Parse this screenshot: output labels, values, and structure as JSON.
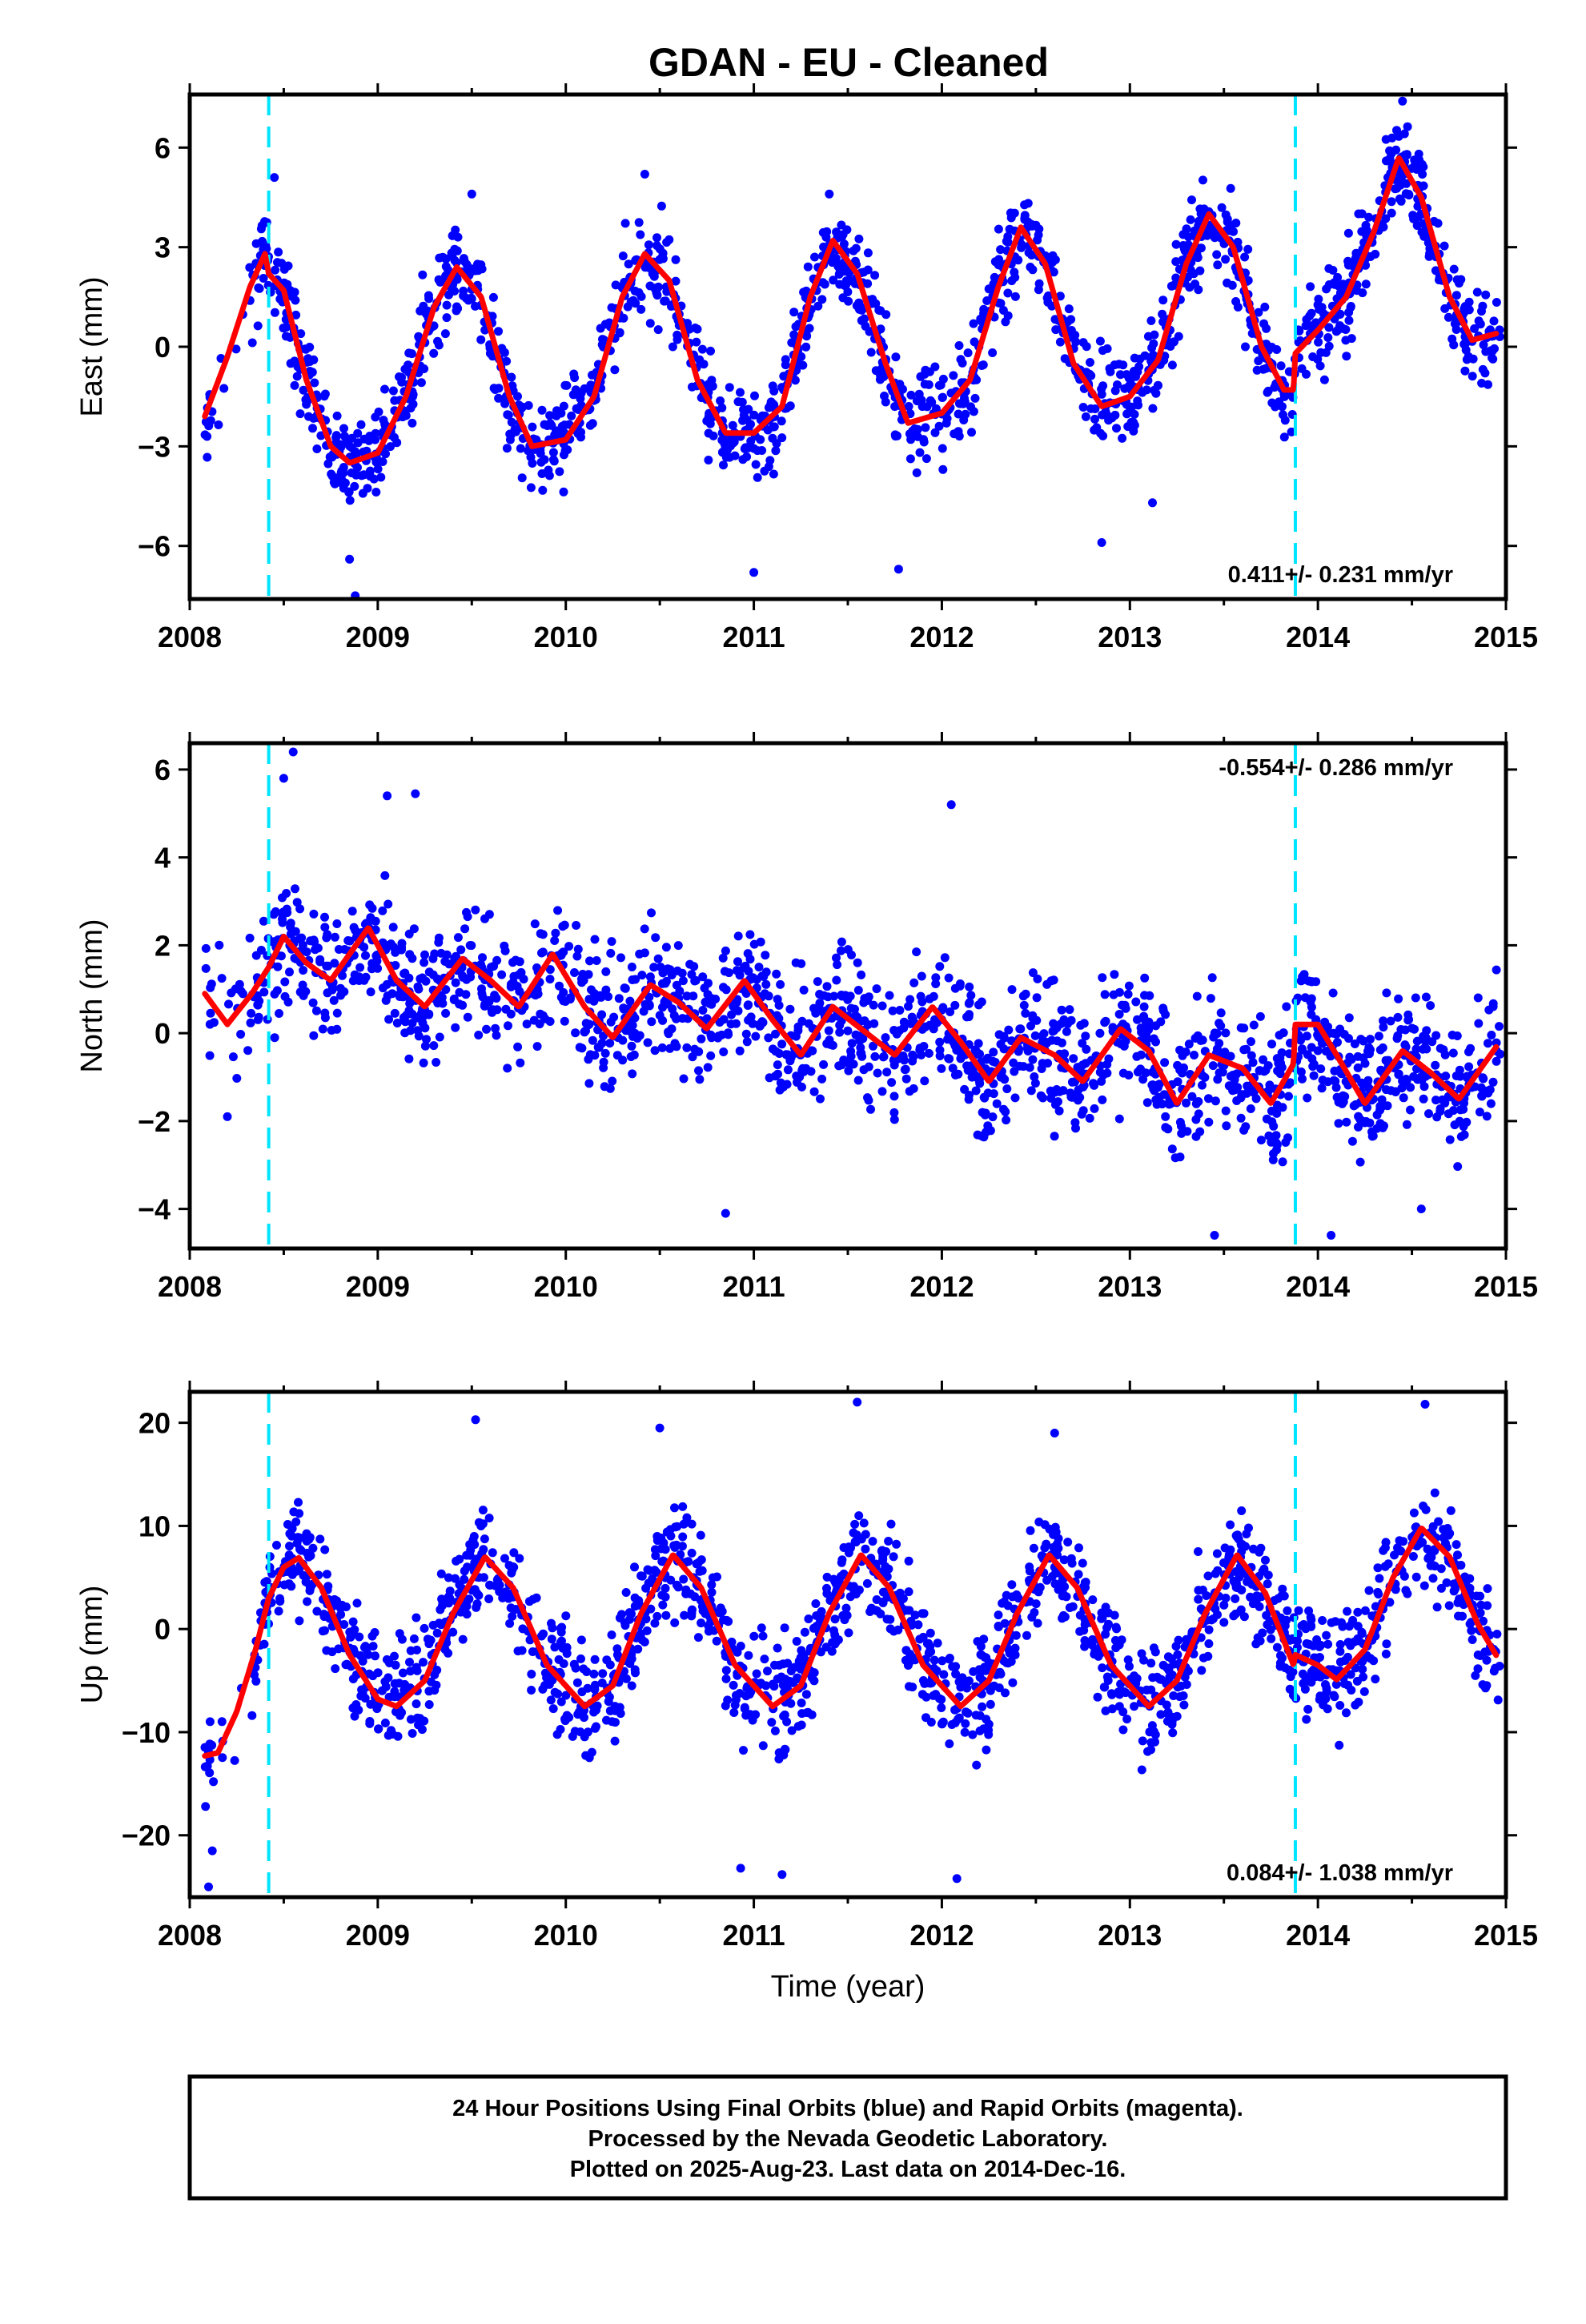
{
  "title": "GDAN  - EU - Cleaned",
  "footer": {
    "line1": "24 Hour Positions Using Final Orbits (blue) and Rapid Orbits (magenta).",
    "line2": "Processed by the Nevada Geodetic Laboratory.",
    "line3": "Plotted on 2025-Aug-23. Last data on 2014-Dec-16."
  },
  "colors": {
    "final_orbits": "#0000ff",
    "model": "#ff0000",
    "offsets": "#00e5ff",
    "frame": "#000000"
  },
  "chart_data": [
    {
      "type": "scatter",
      "name": "east",
      "ylabel": "East (mm)",
      "xlabel": "",
      "xlim": [
        2008.0,
        2015.0
      ],
      "ylim": [
        -7.6,
        7.6
      ],
      "xticks": [
        2008,
        2009,
        2010,
        2011,
        2012,
        2013,
        2014,
        2015
      ],
      "yticks": [
        6,
        3,
        0,
        -3,
        -6
      ],
      "ytick_labels": [
        "6",
        "3",
        "0",
        "−3",
        "−6"
      ],
      "rate_label": "0.411+/- 0.231 mm/yr",
      "rate_position": "bottom-right",
      "offsets": [
        2008.42,
        2013.88
      ],
      "model": {
        "x": [
          2008.08,
          2008.2,
          2008.32,
          2008.4,
          2008.42,
          2008.5,
          2008.62,
          2008.75,
          2008.85,
          2009.0,
          2009.15,
          2009.3,
          2009.42,
          2009.55,
          2009.7,
          2009.82,
          2010.0,
          2010.15,
          2010.3,
          2010.42,
          2010.55,
          2010.7,
          2010.85,
          2011.0,
          2011.15,
          2011.3,
          2011.42,
          2011.55,
          2011.7,
          2011.82,
          2012.0,
          2012.15,
          2012.3,
          2012.42,
          2012.55,
          2012.7,
          2012.85,
          2013.0,
          2013.15,
          2013.3,
          2013.42,
          2013.55,
          2013.7,
          2013.82,
          2013.87,
          2013.88,
          2014.0,
          2014.15,
          2014.3,
          2014.43,
          2014.55,
          2014.7,
          2014.82,
          2014.95
        ],
        "y": [
          -2.1,
          -0.3,
          1.8,
          2.8,
          2.2,
          1.7,
          -1.0,
          -3.0,
          -3.5,
          -3.2,
          -1.5,
          1.2,
          2.4,
          1.5,
          -1.5,
          -3.0,
          -2.8,
          -1.5,
          1.5,
          2.8,
          2.0,
          -1.0,
          -2.6,
          -2.6,
          -1.8,
          1.5,
          3.2,
          2.2,
          -0.5,
          -2.3,
          -2.0,
          -1.0,
          1.8,
          3.6,
          2.5,
          -0.5,
          -1.8,
          -1.5,
          -0.4,
          2.5,
          4.0,
          3.0,
          0.0,
          -1.3,
          -1.3,
          -0.2,
          0.5,
          1.5,
          3.5,
          5.7,
          4.5,
          1.5,
          0.2,
          0.4
        ]
      },
      "series": [
        {
          "name": "",
          "generator": {
            "seed": 11,
            "x_start": 2008.08,
            "x_end": 2014.97,
            "count": 1750,
            "spread": 0.95,
            "outliers": [
              [
                2008.88,
                -7.5
              ],
              [
                2008.85,
                -6.4
              ],
              [
                2011.0,
                -6.8
              ],
              [
                2011.77,
                -6.7
              ],
              [
                2012.85,
                -5.9
              ],
              [
                2013.12,
                -4.7
              ],
              [
                2014.45,
                7.4
              ],
              [
                2008.45,
                5.1
              ],
              [
                2009.5,
                4.6
              ],
              [
                2010.42,
                5.2
              ]
            ]
          }
        }
      ]
    },
    {
      "type": "scatter",
      "name": "north",
      "ylabel": "North (mm)",
      "xlabel": "",
      "xlim": [
        2008.0,
        2015.0
      ],
      "ylim": [
        -4.9,
        6.6
      ],
      "xticks": [
        2008,
        2009,
        2010,
        2011,
        2012,
        2013,
        2014,
        2015
      ],
      "yticks": [
        6,
        4,
        2,
        0,
        -2,
        -4
      ],
      "ytick_labels": [
        "6",
        "4",
        "2",
        "0",
        "−2",
        "−4"
      ],
      "rate_label": "-0.554+/- 0.286 mm/yr",
      "rate_position": "top-right",
      "offsets": [
        2008.42,
        2013.88
      ],
      "model": {
        "x": [
          2008.08,
          2008.2,
          2008.33,
          2008.42,
          2008.5,
          2008.62,
          2008.75,
          2008.95,
          2009.1,
          2009.25,
          2009.45,
          2009.6,
          2009.75,
          2009.93,
          2010.1,
          2010.25,
          2010.45,
          2010.6,
          2010.75,
          2010.95,
          2011.1,
          2011.25,
          2011.42,
          2011.6,
          2011.75,
          2011.95,
          2012.1,
          2012.25,
          2012.42,
          2012.6,
          2012.75,
          2012.95,
          2013.1,
          2013.25,
          2013.42,
          2013.6,
          2013.75,
          2013.87,
          2013.88,
          2014.0,
          2014.1,
          2014.25,
          2014.45,
          2014.6,
          2014.75,
          2014.95
        ],
        "y": [
          0.9,
          0.2,
          0.9,
          1.5,
          2.2,
          1.6,
          1.2,
          2.4,
          1.2,
          0.6,
          1.7,
          1.2,
          0.6,
          1.8,
          0.6,
          -0.1,
          1.1,
          0.7,
          0.1,
          1.2,
          0.3,
          -0.5,
          0.6,
          0.0,
          -0.5,
          0.6,
          -0.2,
          -1.1,
          -0.1,
          -0.5,
          -1.1,
          0.1,
          -0.4,
          -1.6,
          -0.5,
          -0.8,
          -1.6,
          -0.7,
          0.2,
          0.2,
          -0.5,
          -1.6,
          -0.4,
          -0.9,
          -1.5,
          -0.3
        ]
      },
      "series": [
        {
          "name": "",
          "generator": {
            "seed": 23,
            "x_start": 2008.08,
            "x_end": 2014.97,
            "count": 1750,
            "spread": 1.0,
            "outliers": [
              [
                2008.55,
                6.4
              ],
              [
                2008.5,
                5.8
              ],
              [
                2009.05,
                5.4
              ],
              [
                2009.2,
                5.45
              ],
              [
                2012.05,
                5.2
              ],
              [
                2013.45,
                -4.6
              ],
              [
                2014.07,
                -4.6
              ],
              [
                2010.85,
                -4.1
              ],
              [
                2014.55,
                -4.0
              ],
              [
                2008.2,
                -1.9
              ]
            ]
          }
        }
      ]
    },
    {
      "type": "scatter",
      "name": "up",
      "ylabel": "Up (mm)",
      "xlabel": "Time (year)",
      "xlim": [
        2008.0,
        2015.0
      ],
      "ylim": [
        -26.0,
        23.0
      ],
      "xticks": [
        2008,
        2009,
        2010,
        2011,
        2012,
        2013,
        2014,
        2015
      ],
      "yticks": [
        20,
        10,
        0,
        -10,
        -20
      ],
      "ytick_labels": [
        "20",
        "10",
        "0",
        "−10",
        "−20"
      ],
      "rate_label": "0.084+/- 1.038 mm/yr",
      "rate_position": "bottom-right",
      "offsets": [
        2008.42,
        2013.88
      ],
      "model": {
        "x": [
          2008.08,
          2008.15,
          2008.25,
          2008.35,
          2008.42,
          2008.5,
          2008.58,
          2008.7,
          2008.85,
          2009.0,
          2009.1,
          2009.25,
          2009.4,
          2009.57,
          2009.72,
          2009.9,
          2010.1,
          2010.25,
          2010.4,
          2010.57,
          2010.72,
          2010.9,
          2011.1,
          2011.25,
          2011.4,
          2011.57,
          2011.72,
          2011.9,
          2012.1,
          2012.25,
          2012.4,
          2012.57,
          2012.72,
          2012.9,
          2013.1,
          2013.25,
          2013.4,
          2013.57,
          2013.72,
          2013.87,
          2013.88,
          2014.0,
          2014.1,
          2014.25,
          2014.4,
          2014.55,
          2014.7,
          2014.85,
          2014.95
        ],
        "y": [
          -12.3,
          -12.0,
          -8.0,
          -2.0,
          3.0,
          6.0,
          6.9,
          4.0,
          -2.5,
          -6.8,
          -7.5,
          -5.0,
          1.5,
          7.0,
          4.0,
          -3.5,
          -7.5,
          -5.5,
          1.5,
          7.2,
          4.0,
          -3.5,
          -7.5,
          -5.5,
          1.5,
          7.2,
          4.0,
          -3.5,
          -7.5,
          -5.0,
          1.5,
          7.2,
          4.0,
          -3.5,
          -7.5,
          -5.0,
          1.5,
          7.2,
          3.5,
          -3.5,
          -2.5,
          -3.5,
          -4.9,
          -2.0,
          5.0,
          9.8,
          7.0,
          0.5,
          -2.6
        ]
      },
      "series": [
        {
          "name": "",
          "generator": {
            "seed": 37,
            "x_start": 2008.08,
            "x_end": 2014.97,
            "count": 1750,
            "spread": 3.6,
            "outliers": [
              [
                2008.1,
                -25.0
              ],
              [
                2008.12,
                -21.5
              ],
              [
                2011.55,
                22.0
              ],
              [
                2014.57,
                21.8
              ],
              [
                2009.52,
                20.3
              ],
              [
                2012.08,
                -24.2
              ],
              [
                2011.15,
                -23.8
              ],
              [
                2010.93,
                -23.2
              ],
              [
                2010.5,
                19.5
              ],
              [
                2012.6,
                19.0
              ]
            ]
          }
        }
      ]
    }
  ]
}
